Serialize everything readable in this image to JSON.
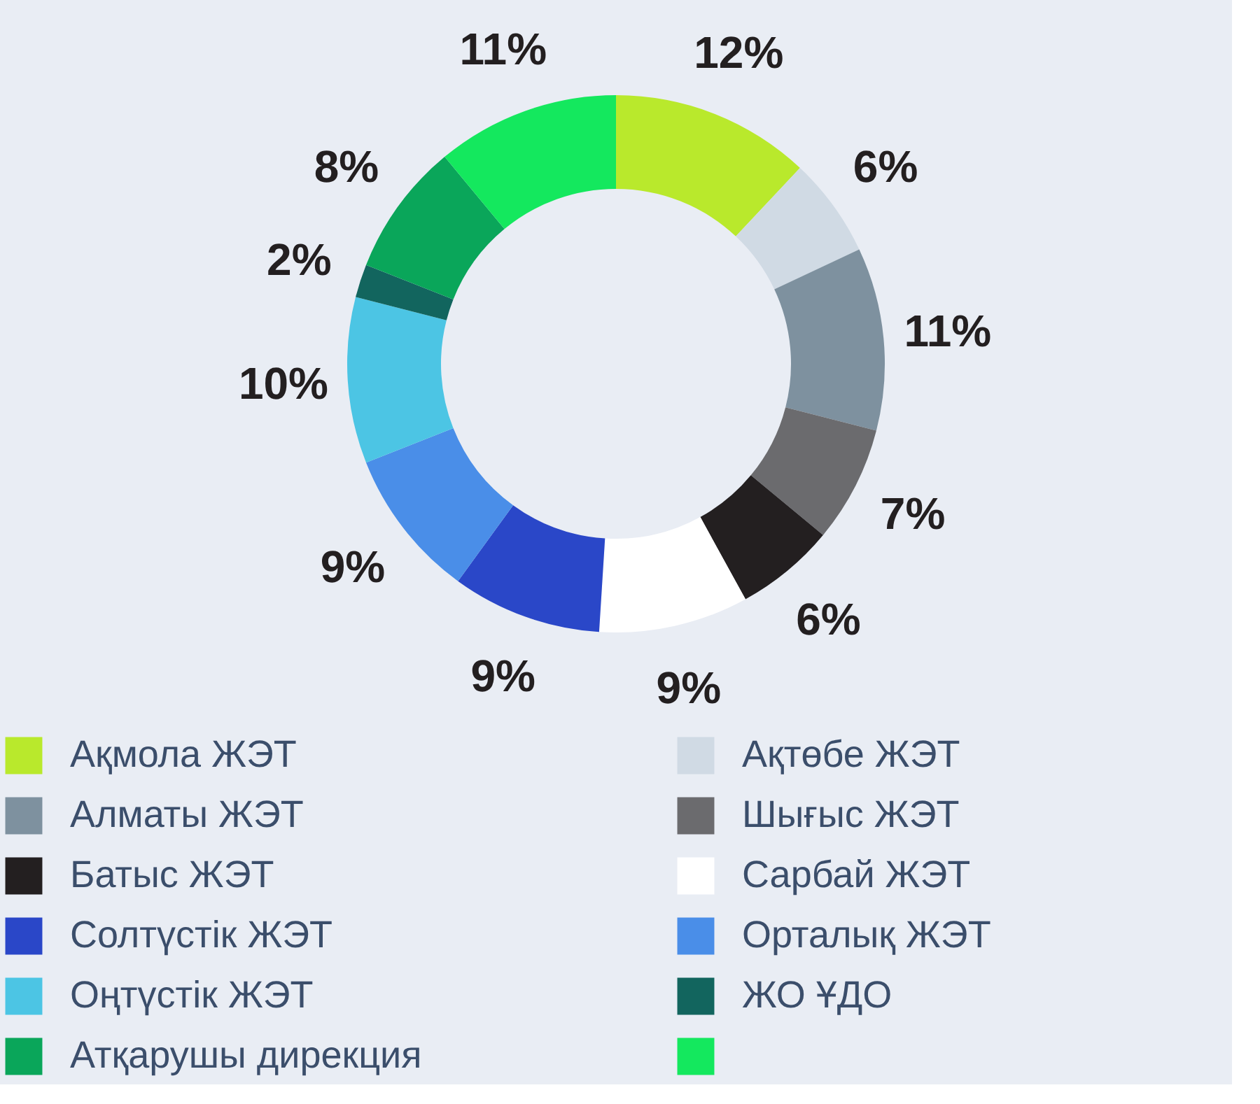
{
  "chart_data": {
    "type": "donut",
    "categories": [
      "Ақмола ЖЭТ",
      "Ақтөбе ЖЭТ",
      "Алматы ЖЭТ",
      "Шығыс ЖЭТ",
      "Батыс ЖЭТ",
      "Сарбай ЖЭТ",
      "Солтүстік ЖЭТ",
      "Орталық ЖЭТ",
      "Оңтүстік ЖЭТ",
      "ЖО ҰДО",
      "Атқарушы дирекция",
      null
    ],
    "values": [
      12,
      6,
      11,
      7,
      6,
      9,
      9,
      9,
      10,
      2,
      8,
      11
    ],
    "value_labels": [
      "12%",
      "6%",
      "11%",
      "7%",
      "6%",
      "9%",
      "9%",
      "9%",
      "10%",
      "2%",
      "8%",
      "11%"
    ],
    "colors": [
      "#b9e92c",
      "#d0dae4",
      "#7e919f",
      "#6b6b6e",
      "#231f20",
      "#ffffff",
      "#2a47c8",
      "#4a8ee8",
      "#4cc5e4",
      "#12655e",
      "#0aa65a",
      "#14e85e"
    ],
    "legend": "bottom"
  }
}
